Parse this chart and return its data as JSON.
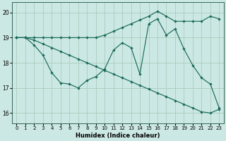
{
  "bg_color": "#cce8e4",
  "grid_color": "#aaccbb",
  "line_color": "#1a6b5a",
  "xlabel": "Humidex (Indice chaleur)",
  "xlim": [
    -0.5,
    23.5
  ],
  "ylim": [
    15.6,
    20.4
  ],
  "yticks": [
    16,
    17,
    18,
    19,
    20
  ],
  "xticks": [
    0,
    1,
    2,
    3,
    4,
    5,
    6,
    7,
    8,
    9,
    10,
    11,
    12,
    13,
    14,
    15,
    16,
    17,
    18,
    19,
    20,
    21,
    22,
    23
  ],
  "s1_x": [
    0,
    1,
    2,
    3,
    4,
    5,
    6,
    7,
    8,
    9,
    10,
    11,
    12,
    13,
    14,
    15,
    16,
    17,
    18,
    19,
    20,
    21,
    22,
    23
  ],
  "s1_y": [
    19.0,
    19.0,
    18.7,
    18.3,
    17.6,
    17.2,
    17.15,
    17.0,
    17.3,
    17.45,
    17.75,
    18.5,
    18.8,
    18.6,
    17.55,
    19.55,
    19.75,
    19.1,
    19.35,
    18.55,
    17.9,
    17.4,
    17.15,
    16.2
  ],
  "s2_x": [
    0,
    1,
    2,
    3,
    4,
    5,
    6,
    7,
    8,
    9,
    10,
    11,
    12,
    13,
    14,
    15,
    16,
    17,
    18,
    19,
    20,
    21,
    22,
    23
  ],
  "s2_y": [
    19.0,
    19.0,
    18.9,
    18.75,
    18.6,
    18.45,
    18.3,
    18.15,
    18.0,
    17.85,
    17.7,
    17.55,
    17.4,
    17.25,
    17.1,
    16.95,
    16.8,
    16.65,
    16.5,
    16.35,
    16.2,
    16.05,
    16.0,
    16.15
  ],
  "s3_x": [
    0,
    1,
    2,
    3,
    4,
    5,
    6,
    7,
    8,
    9,
    10,
    11,
    12,
    13,
    14,
    15,
    16,
    17,
    18,
    19,
    20,
    21,
    22,
    23
  ],
  "s3_y": [
    19.0,
    19.0,
    19.0,
    19.0,
    19.0,
    19.0,
    19.0,
    19.0,
    19.0,
    19.0,
    19.1,
    19.25,
    19.4,
    19.55,
    19.7,
    19.85,
    20.05,
    19.85,
    19.65,
    19.65,
    19.65,
    19.65,
    19.85,
    19.75
  ]
}
